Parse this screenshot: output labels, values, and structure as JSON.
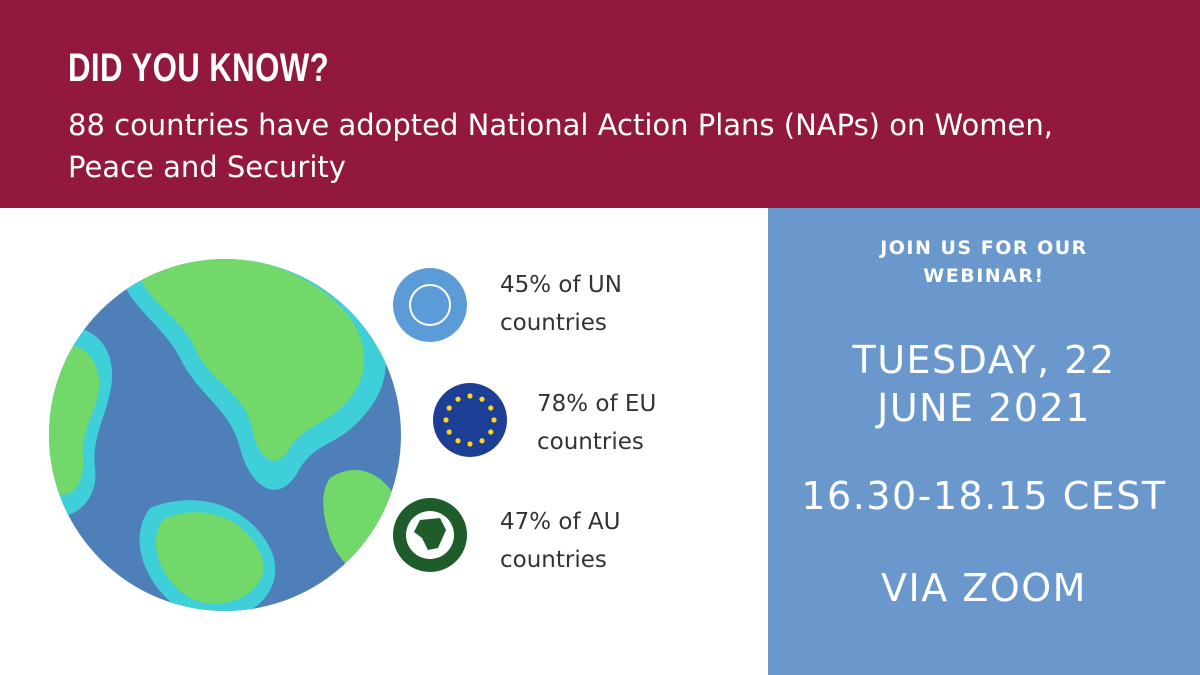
{
  "header": {
    "title": "DID YOU KNOW?",
    "subtitle": "88 countries have adopted National Action Plans (NAPs) on Women, Peace and Security"
  },
  "stats": [
    {
      "text": "45% of UN countries"
    },
    {
      "text": "78% of EU countries"
    },
    {
      "text": "47% of AU countries"
    }
  ],
  "webinar": {
    "invite": "JOIN US FOR OUR WEBINAR!",
    "date": "TUESDAY, 22 JUNE 2021",
    "time": "16.30-18.15 CEST",
    "venue": "VIA ZOOM"
  }
}
